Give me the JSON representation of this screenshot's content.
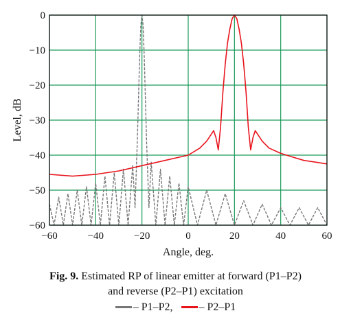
{
  "chart_data": {
    "type": "line",
    "xlabel": "Angle, deg.",
    "ylabel": "Level, dB",
    "xlim": [
      -60,
      60
    ],
    "ylim": [
      -60,
      0
    ],
    "xticks": [
      -60,
      -40,
      -20,
      0,
      20,
      40,
      60
    ],
    "yticks": [
      0,
      -10,
      -20,
      -30,
      -40,
      -50,
      -60
    ],
    "xtick_labels": [
      "−60",
      "−40",
      "−20",
      "0",
      "20",
      "40",
      "60"
    ],
    "ytick_labels": [
      "0",
      "−10",
      "−20",
      "−30",
      "−40",
      "−50",
      "−60"
    ],
    "grid": true,
    "grid_color": "#1a9a5a",
    "series": [
      {
        "name": "P1–P2",
        "color": "#777777",
        "style": "dashed",
        "x": [
          -60,
          -58,
          -56,
          -54,
          -52,
          -50,
          -48,
          -46,
          -44,
          -42,
          -40,
          -38,
          -36,
          -34,
          -32,
          -30,
          -28,
          -26,
          -24,
          -23,
          -22,
          -21,
          -20.5,
          -20,
          -19.5,
          -19,
          -18,
          -17,
          -16,
          -14,
          -12,
          -10,
          -8,
          -6,
          -4,
          -2,
          0,
          4,
          8,
          12,
          16,
          20,
          24,
          28,
          32,
          36,
          40,
          44,
          48,
          52,
          56,
          60
        ],
        "y": [
          -54,
          -60,
          -52,
          -60,
          -51,
          -60,
          -50,
          -60,
          -49,
          -60,
          -48,
          -60,
          -46,
          -60,
          -45,
          -60,
          -44,
          -60,
          -43,
          -55,
          -36,
          -12,
          -3,
          0,
          -3,
          -12,
          -36,
          -55,
          -42,
          -60,
          -44,
          -60,
          -46,
          -60,
          -48,
          -60,
          -49,
          -60,
          -50,
          -60,
          -51,
          -60,
          -53,
          -60,
          -54,
          -60,
          -55,
          -60,
          -55,
          -60,
          -55,
          -60
        ]
      },
      {
        "name": "P2–P1",
        "color": "#e8141c",
        "style": "solid",
        "x": [
          -60,
          -50,
          -40,
          -30,
          -20,
          -10,
          0,
          5,
          8,
          10,
          11,
          12,
          13,
          14,
          15,
          16,
          17,
          18,
          19,
          20,
          21,
          22,
          23,
          24,
          25,
          26,
          27,
          28,
          29,
          30,
          32,
          35,
          40,
          45,
          50,
          55,
          60
        ],
        "y": [
          -45.5,
          -46,
          -45.5,
          -44.5,
          -43,
          -41.5,
          -40,
          -38,
          -36,
          -34,
          -33,
          -35,
          -38.5,
          -32,
          -22,
          -14,
          -8,
          -4,
          -1,
          0,
          -1,
          -4,
          -8,
          -14,
          -22,
          -32,
          -38.5,
          -35,
          -33,
          -34,
          -36,
          -38,
          -39.5,
          -40.5,
          -41.5,
          -42,
          -42.5
        ]
      }
    ]
  },
  "caption": {
    "fig_label": "Fig. 9.",
    "line1": "Estimated RP of linear emitter at forward (P1–P2)",
    "line2": "and reverse (P2–P1) excitation"
  },
  "legend": {
    "item1": "– P1–P2,",
    "item2": "– P2–P1"
  }
}
